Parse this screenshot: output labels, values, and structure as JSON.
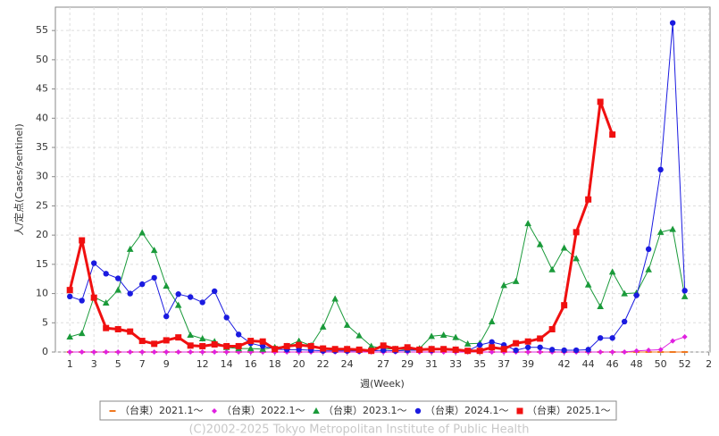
{
  "chart_data": {
    "type": "line",
    "x_label": "週(Week)",
    "y_label": "人/定点(Cases/sentinel)",
    "footer": "(C)2002-2025 Tokyo Metropolitan Institute of Public Health",
    "x": [
      1,
      2,
      3,
      4,
      5,
      6,
      7,
      8,
      9,
      10,
      11,
      12,
      13,
      14,
      15,
      16,
      17,
      18,
      19,
      20,
      21,
      22,
      23,
      24,
      25,
      26,
      27,
      28,
      29,
      30,
      31,
      32,
      33,
      34,
      35,
      36,
      37,
      38,
      39,
      40,
      41,
      42,
      43,
      44,
      45,
      46,
      47,
      48,
      49,
      50,
      51,
      52
    ],
    "xlim": [
      -0.2,
      54.1
    ],
    "xticks": [
      1,
      3,
      5,
      7,
      9,
      12,
      14,
      16,
      18,
      20,
      22,
      24,
      27,
      29,
      31,
      33,
      35,
      37,
      39,
      42,
      44,
      46,
      48,
      50,
      52,
      {
        "value": 54,
        "label": "2"
      }
    ],
    "ylim": [
      0,
      59
    ],
    "yticks": [
      0,
      5,
      10,
      15,
      20,
      25,
      30,
      35,
      40,
      45,
      50,
      55
    ],
    "grid": true,
    "series": [
      {
        "name": "（台東）2021.1～",
        "color": "#f07820",
        "marker": "dash",
        "line_width": 1,
        "values": [
          0,
          0,
          0,
          0,
          0,
          0,
          0,
          0,
          0,
          0,
          0,
          0,
          0,
          0,
          0,
          0,
          0,
          0,
          0,
          0,
          0,
          0,
          0,
          0,
          0,
          0,
          0,
          0,
          0,
          0,
          0,
          0,
          0,
          0,
          0,
          0,
          0,
          0,
          0,
          0,
          0,
          0,
          0,
          0,
          0,
          0,
          0,
          0,
          0,
          0,
          0,
          0
        ]
      },
      {
        "name": "（台東）2022.1～",
        "color": "#e020e0",
        "marker": "diamond",
        "line_width": 1,
        "values": [
          0,
          0,
          0,
          0,
          0,
          0,
          0,
          0,
          0,
          0,
          0,
          0,
          0,
          0,
          0,
          0,
          0,
          0,
          0,
          0,
          0,
          0,
          0,
          0,
          0,
          0,
          0,
          0,
          0,
          0,
          0,
          0,
          0,
          0,
          0,
          0,
          0,
          0,
          0,
          0,
          0,
          0,
          0,
          0,
          0,
          0,
          0,
          0.2,
          0.3,
          0.4,
          1.9,
          2.6
        ]
      },
      {
        "name": "（台東）2023.1～",
        "color": "#1a9a3a",
        "marker": "triangle",
        "line_width": 1,
        "values": [
          2.6,
          3.2,
          9.4,
          8.4,
          10.6,
          17.6,
          20.4,
          17.4,
          11.3,
          8.0,
          2.9,
          2.3,
          1.8,
          0.8,
          0.6,
          0.6,
          0.5,
          0.8,
          1.0,
          1.9,
          1.1,
          4.3,
          9.1,
          4.6,
          2.8,
          1.0,
          0.6,
          0.5,
          0.4,
          0.6,
          2.7,
          2.9,
          2.5,
          1.4,
          1.5,
          5.2,
          11.4,
          12.1,
          22.0,
          18.4,
          14.1,
          17.8,
          16.0,
          11.5,
          7.8,
          13.7,
          10.0,
          10.1,
          14.1,
          20.5,
          21.0,
          9.5
        ]
      },
      {
        "name": "（台東）2024.1～",
        "color": "#1a1ae0",
        "marker": "circle",
        "line_width": 1,
        "values": [
          9.5,
          8.8,
          15.2,
          13.4,
          12.6,
          10.0,
          11.6,
          12.7,
          6.1,
          9.9,
          9.4,
          8.5,
          10.4,
          5.9,
          3.0,
          1.5,
          1.0,
          0.5,
          0.4,
          0.4,
          0.3,
          0.2,
          0.2,
          0.2,
          0.2,
          0.2,
          0.3,
          0.2,
          0.3,
          0.3,
          0.3,
          0.5,
          0.3,
          0.2,
          1.2,
          1.7,
          1.2,
          0.3,
          0.8,
          0.8,
          0.4,
          0.3,
          0.3,
          0.4,
          2.4,
          2.4,
          5.2,
          9.7,
          17.6,
          31.2,
          56.3,
          10.5
        ]
      },
      {
        "name": "（台東）2025.1～",
        "color": "#f01010",
        "marker": "square",
        "line_width": 3,
        "values": [
          10.6,
          19.1,
          9.3,
          4.1,
          3.9,
          3.5,
          1.9,
          1.4,
          2.0,
          2.5,
          1.1,
          1.0,
          1.3,
          1.0,
          1.0,
          1.9,
          1.8,
          0.5,
          1.0,
          1.2,
          1.0,
          0.6,
          0.5,
          0.5,
          0.4,
          0.2,
          1.1,
          0.5,
          0.8,
          0.4,
          0.5,
          0.5,
          0.4,
          0.2,
          0.2,
          0.8,
          0.5,
          1.5,
          1.8,
          2.3,
          3.9,
          8.0,
          20.5,
          26.1,
          42.8,
          37.2,
          null,
          null,
          null,
          null,
          null,
          null
        ]
      }
    ]
  }
}
